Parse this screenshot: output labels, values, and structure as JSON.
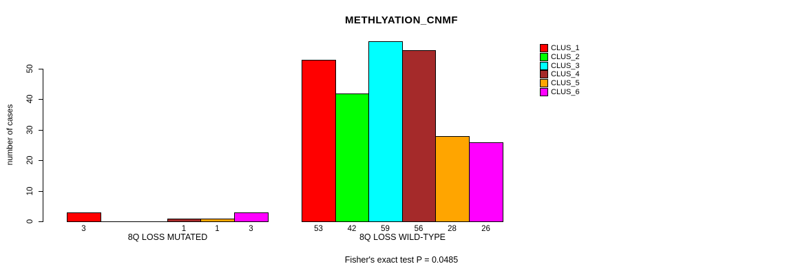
{
  "title": "METHLYATION_CNMF",
  "chart_data": {
    "type": "bar",
    "title": "METHLYATION_CNMF",
    "ylabel": "number of cases",
    "xlabel": "",
    "ylim": [
      0,
      50
    ],
    "yticks": [
      0,
      10,
      20,
      30,
      40,
      50
    ],
    "grid": false,
    "legend_position": "right",
    "categories": [
      "8Q LOSS MUTATED",
      "8Q LOSS WILD-TYPE"
    ],
    "series": [
      {
        "name": "CLUS_1",
        "color": "#FF0000",
        "values": [
          3,
          53
        ]
      },
      {
        "name": "CLUS_2",
        "color": "#00FF00",
        "values": [
          0,
          42
        ]
      },
      {
        "name": "CLUS_3",
        "color": "#00FFFF",
        "values": [
          0,
          59
        ]
      },
      {
        "name": "CLUS_4",
        "color": "#A52A2A",
        "values": [
          1,
          56
        ]
      },
      {
        "name": "CLUS_5",
        "color": "#FFA500",
        "values": [
          1,
          28
        ]
      },
      {
        "name": "CLUS_6",
        "color": "#FF00FF",
        "values": [
          3,
          26
        ]
      }
    ],
    "bar_value_labels": {
      "shown": true,
      "zero_values_unlabeled": true
    },
    "annotation": "Fisher's exact test P = 0.0485",
    "axis_color": "#000000",
    "text_color": "#000000",
    "background_color": "#FFFFFF"
  }
}
